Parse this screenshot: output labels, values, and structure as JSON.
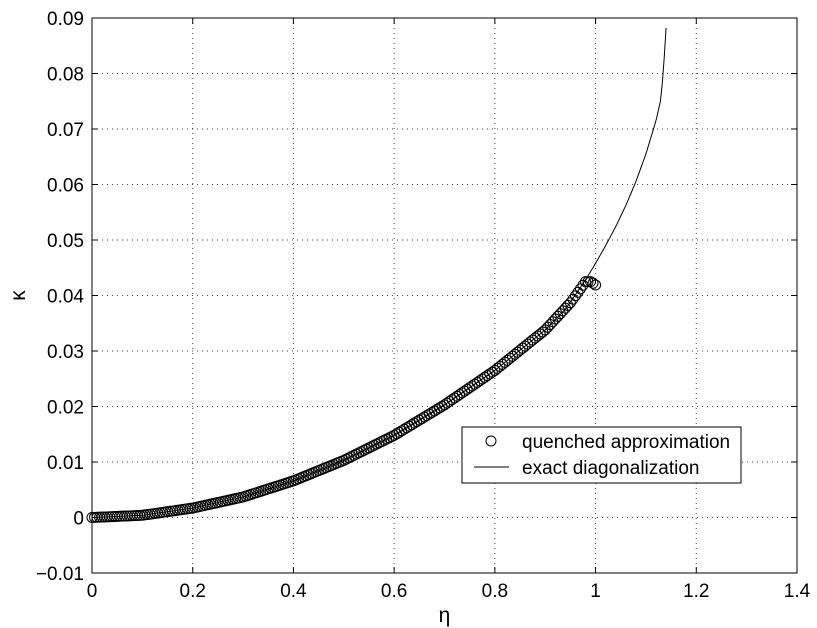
{
  "chart_data": {
    "type": "scatter",
    "title": "",
    "xlabel": "η",
    "ylabel": "κ",
    "xlim": [
      0,
      1.4
    ],
    "ylim": [
      -0.01,
      0.09
    ],
    "xticks": [
      0,
      0.2,
      0.4,
      0.6,
      0.8,
      1,
      1.2,
      1.4
    ],
    "yticks": [
      -0.01,
      0,
      0.01,
      0.02,
      0.03,
      0.04,
      0.05,
      0.06,
      0.07,
      0.08,
      0.09
    ],
    "xtick_labels": [
      "0",
      "0.2",
      "0.4",
      "0.6",
      "0.8",
      "1",
      "1.2",
      "1.4"
    ],
    "ytick_labels": [
      "−0.01",
      "0",
      "0.01",
      "0.02",
      "0.03",
      "0.04",
      "0.05",
      "0.06",
      "0.07",
      "0.08",
      "0.09"
    ],
    "grid": true,
    "legend_position": "center-right",
    "series": [
      {
        "name": "quenched approximation",
        "style": "circle-markers",
        "x": [
          0,
          0.1,
          0.2,
          0.3,
          0.4,
          0.5,
          0.6,
          0.7,
          0.8,
          0.9,
          0.95,
          0.97,
          0.98,
          0.99,
          1.0
        ],
        "y": [
          0,
          0.0004,
          0.0017,
          0.0037,
          0.0066,
          0.0103,
          0.0148,
          0.0203,
          0.0265,
          0.0338,
          0.0387,
          0.0412,
          0.0425,
          0.0425,
          0.0419
        ]
      },
      {
        "name": "exact diagonalization",
        "style": "solid-line",
        "x": [
          0,
          0.1,
          0.2,
          0.3,
          0.4,
          0.5,
          0.6,
          0.7,
          0.8,
          0.9,
          0.94,
          0.98,
          1.0,
          1.02,
          1.04,
          1.06,
          1.08,
          1.1,
          1.12,
          1.13,
          1.135,
          1.14
        ],
        "y": [
          0,
          0.0004,
          0.0017,
          0.0037,
          0.0066,
          0.0103,
          0.0148,
          0.0203,
          0.0265,
          0.0338,
          0.0375,
          0.0428,
          0.0458,
          0.049,
          0.0524,
          0.0562,
          0.0605,
          0.0655,
          0.0715,
          0.0755,
          0.081,
          0.0882
        ]
      }
    ]
  }
}
